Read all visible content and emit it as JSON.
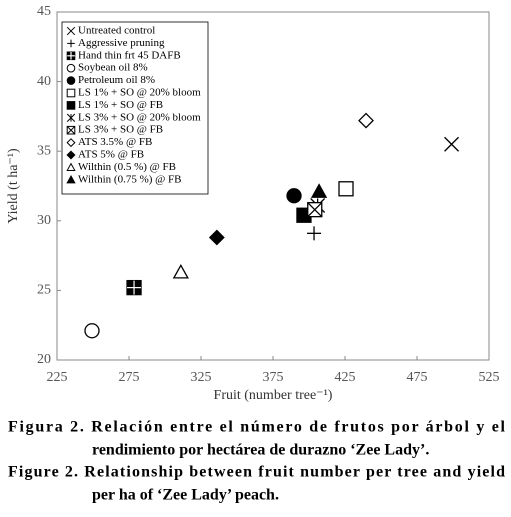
{
  "chart_data": {
    "type": "scatter",
    "x_label": "Fruit (number tree⁻¹)",
    "y_label": "Yield (t ha⁻¹)",
    "xlim": [
      225,
      525
    ],
    "xticks": [
      225,
      275,
      325,
      375,
      425,
      475,
      525
    ],
    "ylim": [
      20,
      45
    ],
    "yticks": [
      20,
      25,
      30,
      35,
      40,
      45
    ],
    "series": [
      {
        "name": "Untreated control",
        "marker": "x",
        "color": "#000000",
        "x": [
          499
        ],
        "values": [
          35.5
        ]
      },
      {
        "name": "Aggressive pruning",
        "marker": "plus",
        "color": "#000000",
        "x": [
          403.5
        ],
        "values": [
          29.1
        ]
      },
      {
        "name": "Hand thin frt 45 DAFB",
        "marker": "square-plus",
        "color": "#000000",
        "x": [
          278.5
        ],
        "values": [
          25.2
        ]
      },
      {
        "name": "Soybean oil 8%",
        "marker": "circle-open",
        "color": "#000000",
        "x": [
          249.3
        ],
        "values": [
          22.1
        ]
      },
      {
        "name": "Petroleum oil 8%",
        "marker": "circle",
        "color": "#000000",
        "x": [
          389.6
        ],
        "values": [
          31.8
        ]
      },
      {
        "name": "LS 1% + SO @ 20% bloom",
        "marker": "square-open",
        "color": "#000000",
        "x": [
          425.7
        ],
        "values": [
          32.3
        ]
      },
      {
        "name": "LS 1% + SO @ FB",
        "marker": "square",
        "color": "#000000",
        "x": [
          396.5
        ],
        "values": [
          30.4
        ]
      },
      {
        "name": "LS 3% + SO @ 20% bloom",
        "marker": "asterisk",
        "color": "#000000",
        "x": [
          406
        ],
        "values": [
          31.1
        ]
      },
      {
        "name": "LS 3% + SO @ FB",
        "marker": "square-x",
        "color": "#000000",
        "x": [
          404
        ],
        "values": [
          30.8
        ]
      },
      {
        "name": "ATS 3.5% @ FB",
        "marker": "diamond-open",
        "color": "#000000",
        "x": [
          439.6
        ],
        "values": [
          37.2
        ]
      },
      {
        "name": "ATS 5% @ FB",
        "marker": "diamond",
        "color": "#000000",
        "x": [
          336
        ],
        "values": [
          28.8
        ]
      },
      {
        "name": "Wilthin (0.5 %) @ FB",
        "marker": "triangle-open",
        "color": "#000000",
        "x": [
          311
        ],
        "values": [
          26.3
        ]
      },
      {
        "name": "Wilthin (0.75 %) @ FB",
        "marker": "triangle",
        "color": "#000000",
        "x": [
          407
        ],
        "values": [
          32.1
        ]
      }
    ],
    "caption": [
      "Figura 2. Relación entre el número de frutos por árbol y el",
      "rendimiento por hectárea de durazno ‘Zee Lady’.",
      "Figure 2. Relationship between fruit number per tree and yield",
      "per ha of ‘Zee Lady’ peach."
    ]
  }
}
